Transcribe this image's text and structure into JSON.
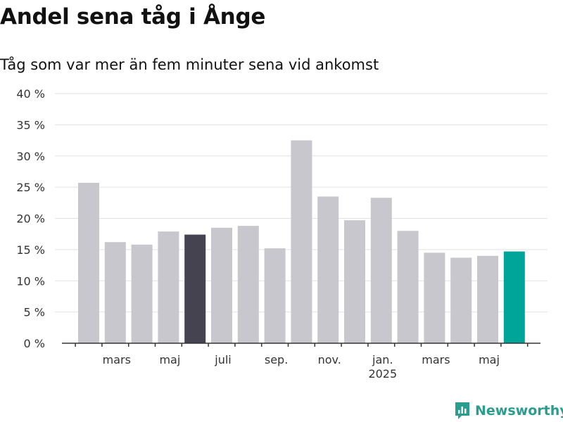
{
  "title": "Andel sena tåg i Ånge",
  "subtitle": "Tåg som var mer än fem minuter sena vid ankomst",
  "brand": "Newsworthy",
  "colors": {
    "default_bar": "#c8c7cd",
    "highlight_bar": "#44434f",
    "latest_bar": "#00a59a",
    "grid": "#e2e2e2",
    "axis": "#333333",
    "brand": "#2a9d8f"
  },
  "chart_data": {
    "type": "bar",
    "title": "Andel sena tåg i Ånge",
    "subtitle": "Tåg som var mer än fem minuter sena vid ankomst",
    "xlabel": "",
    "ylabel": "",
    "ylim": [
      0,
      40
    ],
    "y_ticks": [
      "0 %",
      "5 %",
      "10 %",
      "15 %",
      "20 %",
      "25 %",
      "30 %",
      "35 %",
      "40 %"
    ],
    "grid": true,
    "categories": [
      "2024-02",
      "2024-03",
      "2024-04",
      "2024-05",
      "2024-06",
      "2024-07",
      "2024-08",
      "2024-09",
      "2024-10",
      "2024-11",
      "2024-12",
      "2025-01",
      "2025-02",
      "2025-03",
      "2025-04",
      "2025-05",
      "2025-06"
    ],
    "values": [
      25.7,
      16.2,
      15.8,
      17.9,
      17.4,
      18.5,
      18.8,
      15.2,
      32.5,
      23.5,
      19.7,
      23.3,
      18.0,
      14.5,
      13.7,
      14.0,
      14.7
    ],
    "bar_styles": [
      "default",
      "default",
      "default",
      "default",
      "highlight",
      "default",
      "default",
      "default",
      "default",
      "default",
      "default",
      "default",
      "default",
      "default",
      "default",
      "default",
      "latest"
    ],
    "x_tick_labels": [
      {
        "label": "mars",
        "index": 1
      },
      {
        "label": "maj",
        "index": 3
      },
      {
        "label": "juli",
        "index": 5
      },
      {
        "label": "sep.",
        "index": 7
      },
      {
        "label": "nov.",
        "index": 9
      },
      {
        "label": "jan.",
        "index": 11
      },
      {
        "label": "mars",
        "index": 13
      },
      {
        "label": "maj",
        "index": 15
      }
    ],
    "year_labels": [
      {
        "label": "2025",
        "index": 11
      }
    ]
  }
}
